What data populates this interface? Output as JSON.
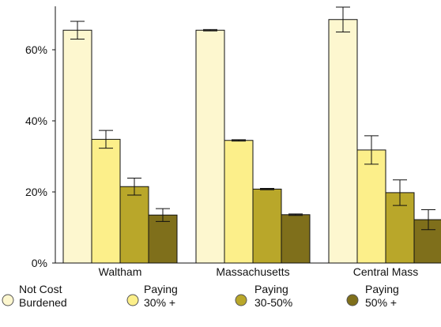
{
  "chart_data": {
    "type": "bar",
    "categories": [
      "Waltham",
      "Massachusetts",
      "Central Mass"
    ],
    "series": [
      {
        "name": "Not Cost Burdened",
        "legend_lines": [
          "Not Cost",
          "Burdened"
        ],
        "color": "#fdf7cf",
        "values": [
          65.5,
          65.5,
          68.5
        ],
        "error": [
          2.5,
          0.2,
          3.5
        ]
      },
      {
        "name": "Paying 30% +",
        "legend_lines": [
          "Paying",
          "30%  +"
        ],
        "color": "#fcef8a",
        "values": [
          34.8,
          34.5,
          31.8
        ],
        "error": [
          2.5,
          0.2,
          4.0
        ]
      },
      {
        "name": "Paying 30-50%",
        "legend_lines": [
          "Paying",
          "30-50%"
        ],
        "color": "#b9a72a",
        "values": [
          21.5,
          20.8,
          19.8
        ],
        "error": [
          2.4,
          0.2,
          3.6
        ]
      },
      {
        "name": "Paying 50% +",
        "legend_lines": [
          "Paying",
          "50% +"
        ],
        "color": "#7f6f1b",
        "values": [
          13.5,
          13.6,
          12.2
        ],
        "error": [
          1.8,
          0.2,
          2.8
        ]
      }
    ],
    "ylim": [
      0,
      70
    ],
    "yticks": [
      0,
      20,
      40,
      60
    ],
    "ytick_labels": [
      "0%",
      "20%",
      "40%",
      "60%"
    ],
    "legend_placement": "bottom",
    "grid": false,
    "title": "",
    "xlabel": "",
    "ylabel": ""
  }
}
